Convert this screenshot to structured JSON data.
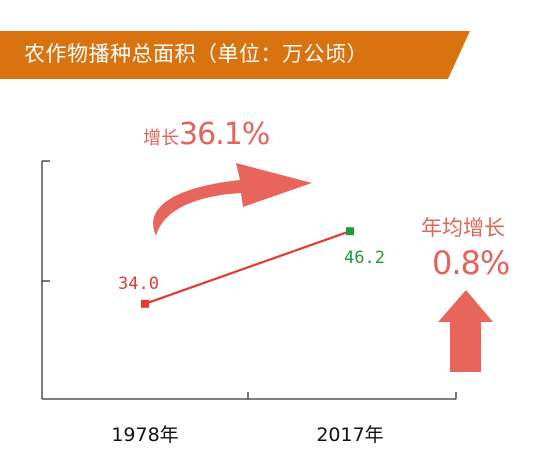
{
  "header": {
    "title": "农作物播种总面积（单位：万公顷）"
  },
  "annotations": {
    "growth_prefix": "增长",
    "growth_value": "36.1%",
    "annual_label": "年均增长",
    "annual_value": "0.8%"
  },
  "colors": {
    "banner": "#d8730f",
    "line": "#e53935",
    "point_start": "#e53935",
    "point_end": "#1e9b3a",
    "label_start": "#e53935",
    "label_end": "#1e9b3a",
    "arrow": "#e8655c"
  },
  "chart_data": {
    "type": "line",
    "categories": [
      "1978年",
      "2017年"
    ],
    "series": [
      {
        "values": [
          34.0,
          46.2
        ],
        "labels": [
          "34.0",
          "46.2"
        ]
      }
    ],
    "ylim": [
      18,
      58
    ],
    "grid": false
  }
}
